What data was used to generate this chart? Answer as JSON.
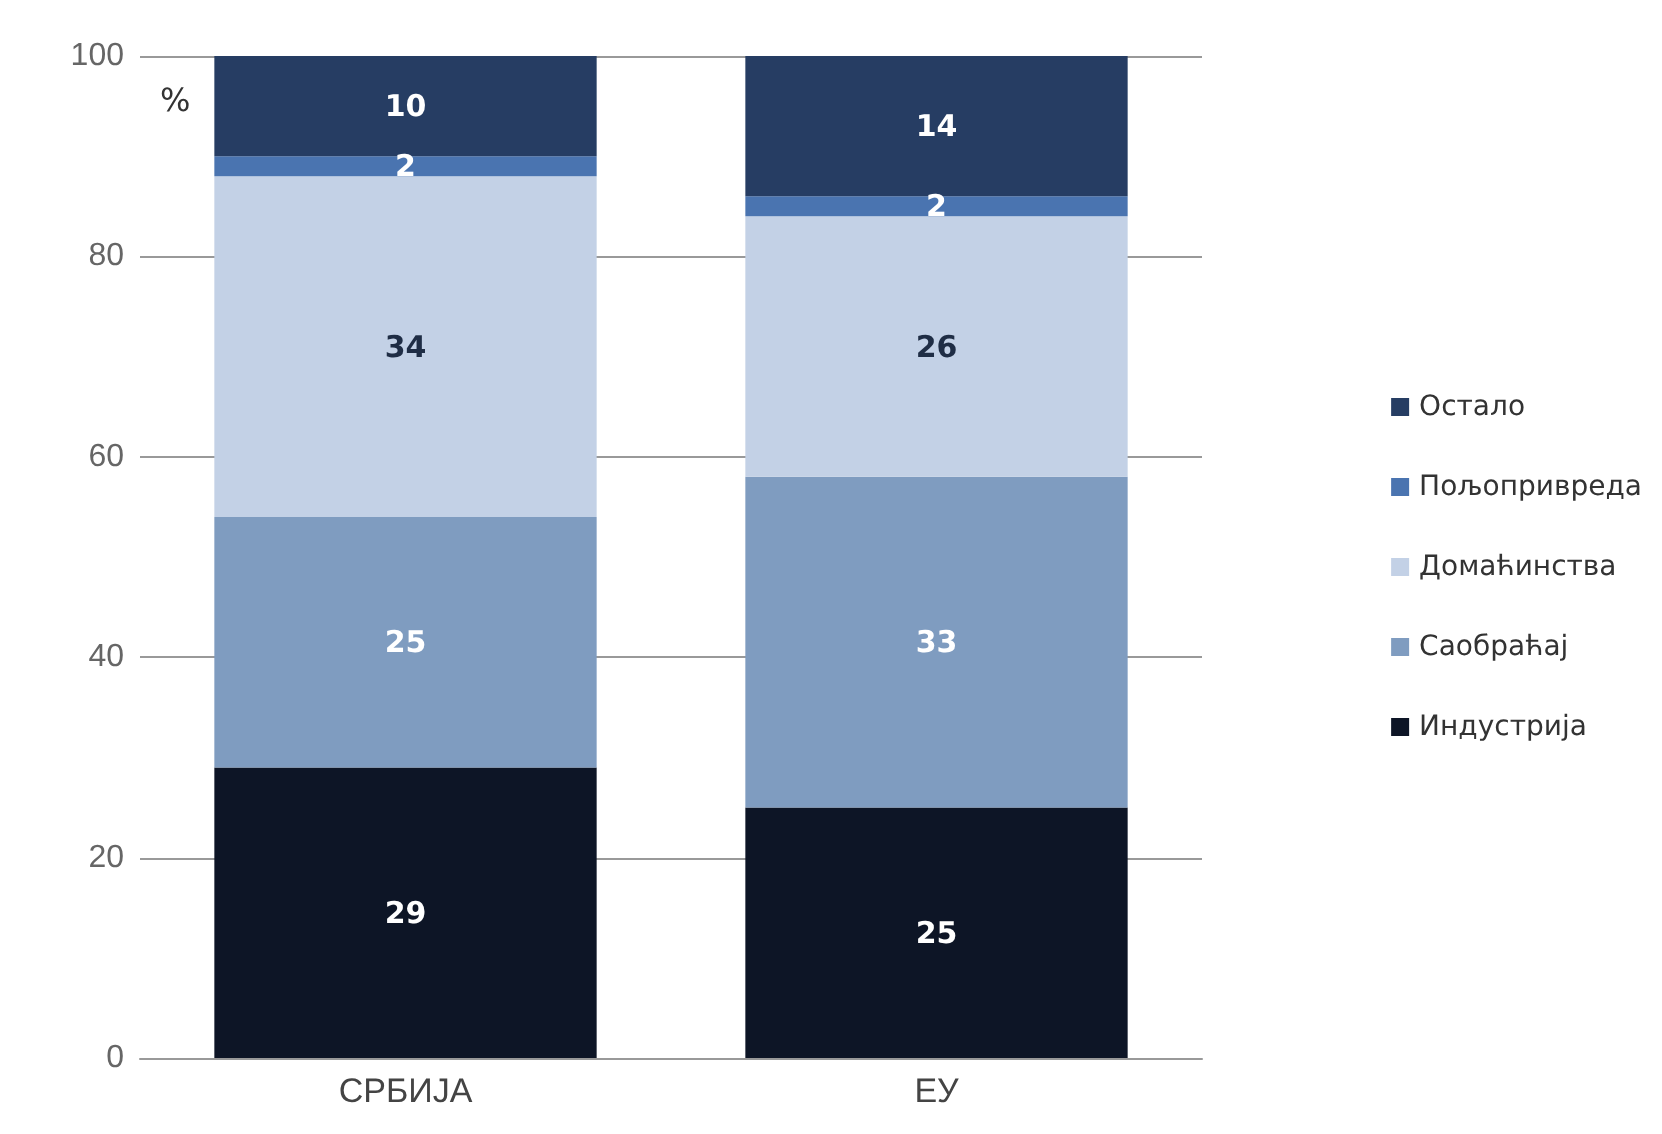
{
  "chart_data": {
    "type": "bar",
    "stacked": true,
    "ylabel": "%",
    "categories": [
      "СРБИЈА",
      "ЕУ"
    ],
    "series": [
      {
        "name": "Индустрија",
        "color": "#0d1526",
        "values": [
          29,
          25
        ]
      },
      {
        "name": "Саобраћај",
        "color": "#7f9cc0",
        "values": [
          25,
          33
        ]
      },
      {
        "name": "Домаћинства",
        "color": "#c3d1e6",
        "values": [
          34,
          26
        ]
      },
      {
        "name": "Пољопривреда",
        "color": "#4a74b0",
        "values": [
          2,
          2
        ]
      },
      {
        "name": "Остало",
        "color": "#263d63",
        "values": [
          10,
          14
        ]
      }
    ],
    "ylim": [
      0,
      100
    ],
    "yticks": [
      0,
      20,
      40,
      60,
      80,
      100
    ],
    "grid": "y",
    "legend": "right",
    "data_labels": true
  }
}
